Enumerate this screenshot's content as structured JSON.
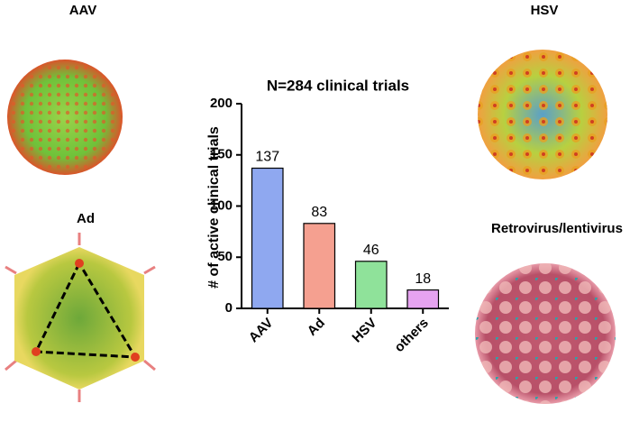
{
  "panels": [
    {
      "label": "AAV"
    },
    {
      "label": "Ad"
    },
    {
      "label": "HSV"
    },
    {
      "label": "Retrovirus/lentivirus"
    }
  ],
  "chart_data": {
    "type": "bar",
    "title": "N=284 clinical trials",
    "y_label": "# of active clinical trials",
    "categories": [
      "AAV",
      "Ad",
      "HSV",
      "others"
    ],
    "values": [
      137,
      83,
      46,
      18
    ],
    "colors": [
      "#8fa8f0",
      "#f5a090",
      "#8fe29a",
      "#e6a3f0"
    ],
    "ylim": [
      0,
      200
    ],
    "yticks": [
      0,
      50,
      100,
      150,
      200
    ],
    "grid": false
  }
}
